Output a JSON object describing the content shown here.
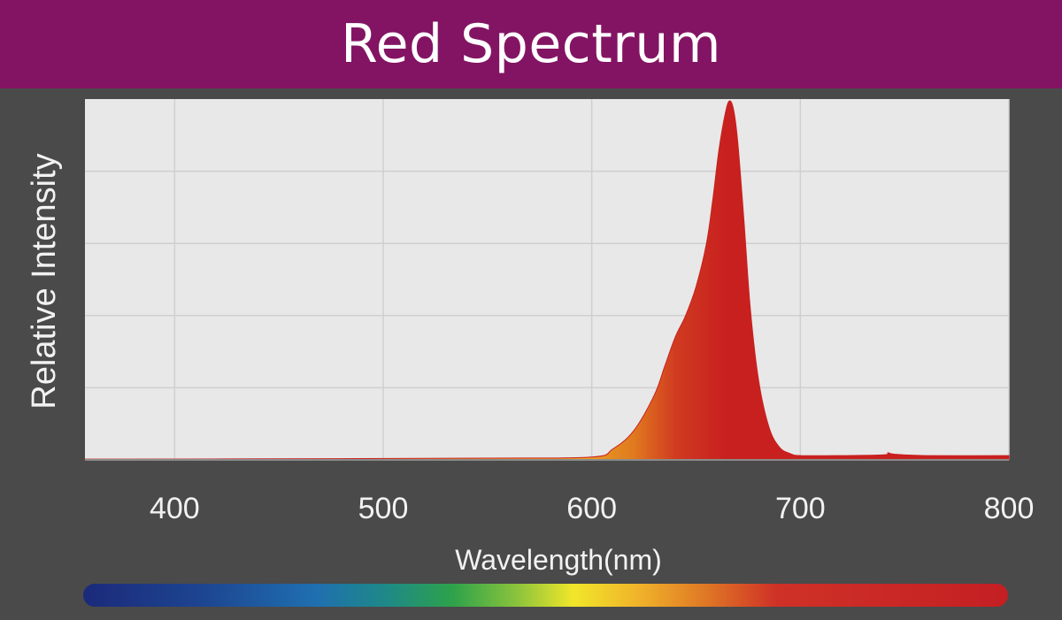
{
  "colors": {
    "title_bar": "#831463",
    "background": "#4a4a4a",
    "plot_bg": "#e8e8e8",
    "grid": "#cfcfcf",
    "curve_red": "#c8201f",
    "curve_orange": "#e8a020",
    "text": "#f2f2f2"
  },
  "chart_data": {
    "type": "area",
    "title": "Red Spectrum",
    "xlabel": "Wavelength(nm)",
    "ylabel": "Relative Intensity",
    "xlim": [
      357,
      800
    ],
    "ylim": [
      0,
      1
    ],
    "x_ticks": [
      400,
      500,
      600,
      700,
      800
    ],
    "x_tick_labels": [
      "400",
      "500",
      "600",
      "700",
      "800"
    ],
    "y_gridlines": [
      0.2,
      0.4,
      0.6,
      0.8
    ],
    "grid": true,
    "legend": "none",
    "wavelength_colorbar": true,
    "series": [
      {
        "x": [
          357,
          450,
          550,
          600,
          610,
          620,
          630,
          635,
          640,
          645,
          650,
          655,
          658,
          661,
          664,
          666,
          668,
          670,
          673,
          676,
          680,
          685,
          690,
          695,
          700,
          720,
          740,
          742,
          745,
          760,
          800
        ],
        "y": [
          0.002,
          0.003,
          0.005,
          0.008,
          0.03,
          0.08,
          0.18,
          0.26,
          0.34,
          0.4,
          0.48,
          0.6,
          0.72,
          0.86,
          0.96,
          0.995,
          0.97,
          0.88,
          0.66,
          0.42,
          0.22,
          0.09,
          0.035,
          0.018,
          0.012,
          0.012,
          0.014,
          0.02,
          0.016,
          0.012,
          0.012
        ]
      }
    ]
  }
}
